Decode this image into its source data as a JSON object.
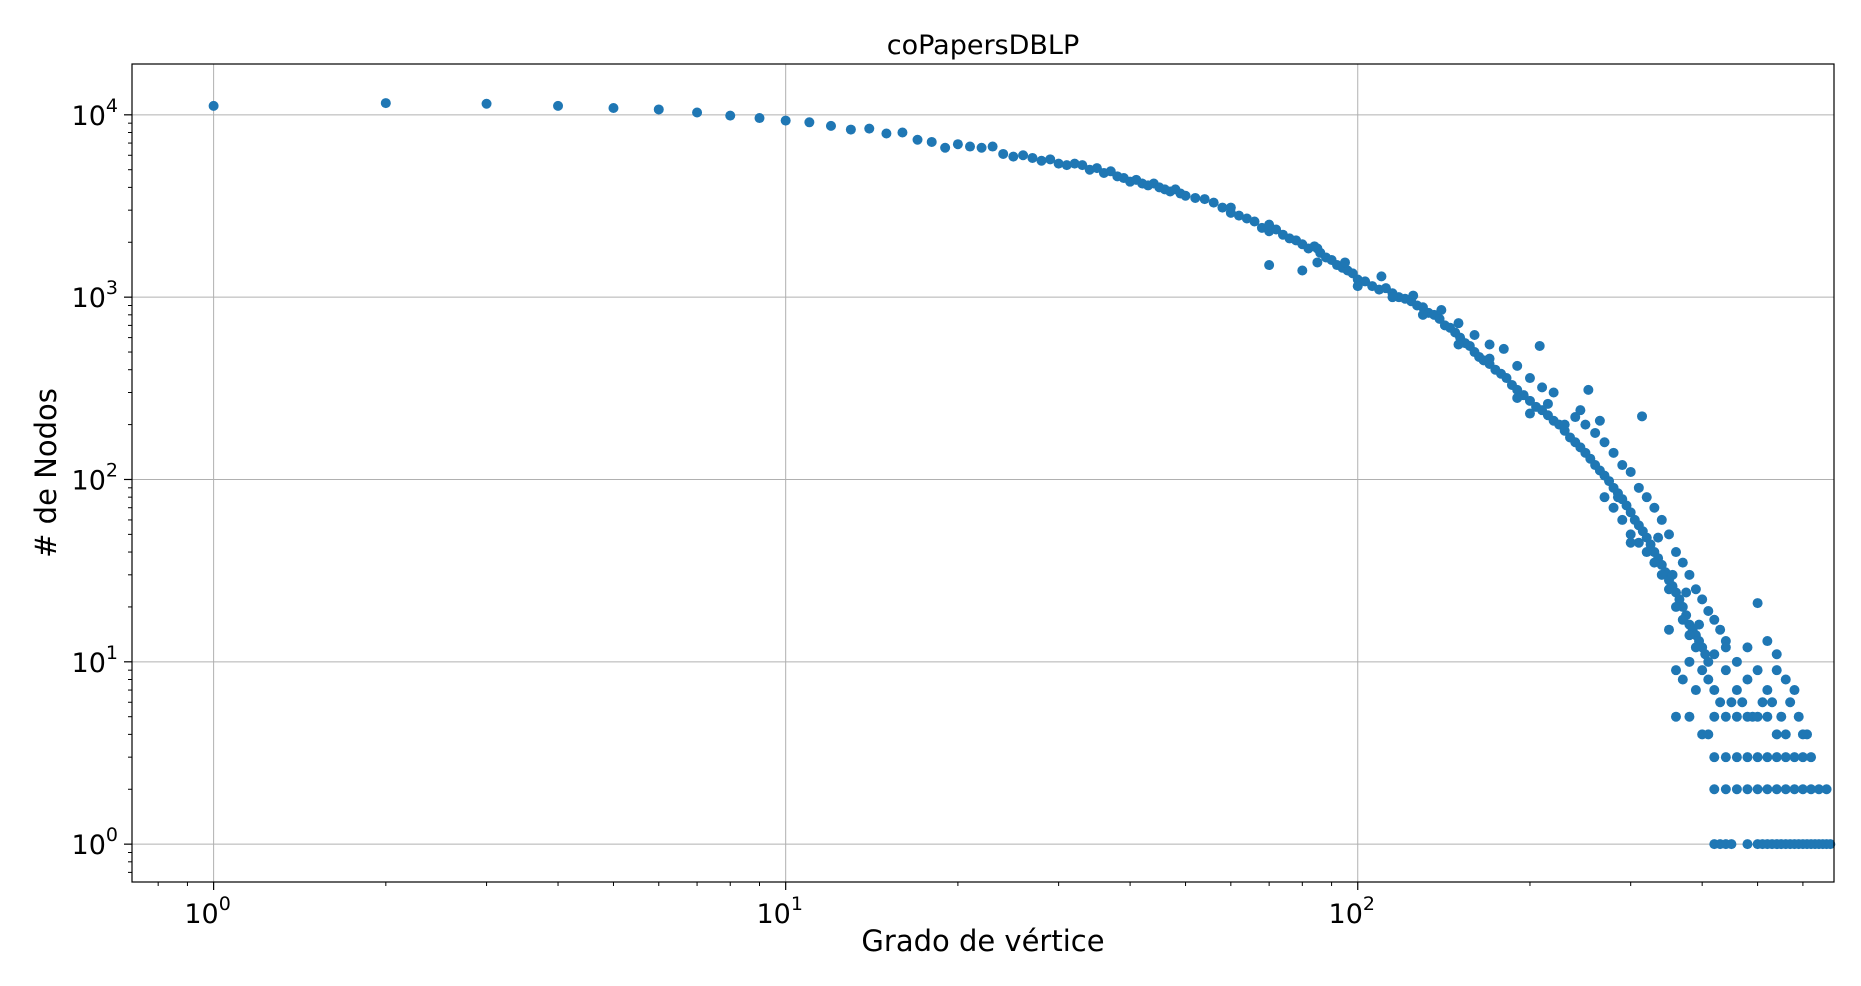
{
  "chart_data": {
    "type": "scatter",
    "title": "coPapersDBLP",
    "xlabel": "Grado de vértice",
    "ylabel": "# de Nodos",
    "xscale": "log",
    "yscale": "log",
    "xlim": [
      0.72,
      680
    ],
    "ylim": [
      0.62,
      19000
    ],
    "grid": true,
    "marker_color": "#1f77b4",
    "x_ticks": [
      {
        "base": "10",
        "exp": "0",
        "value": 1
      },
      {
        "base": "10",
        "exp": "1",
        "value": 10
      },
      {
        "base": "10",
        "exp": "2",
        "value": 100
      }
    ],
    "y_ticks": [
      {
        "base": "10",
        "exp": "0",
        "value": 1
      },
      {
        "base": "10",
        "exp": "1",
        "value": 10
      },
      {
        "base": "10",
        "exp": "2",
        "value": 100
      },
      {
        "base": "10",
        "exp": "3",
        "value": 1000
      },
      {
        "base": "10",
        "exp": "4",
        "value": 10000
      }
    ],
    "points": [
      [
        1,
        11200
      ],
      [
        2,
        11600
      ],
      [
        3,
        11500
      ],
      [
        4,
        11200
      ],
      [
        5,
        10900
      ],
      [
        6,
        10700
      ],
      [
        7,
        10300
      ],
      [
        8,
        9900
      ],
      [
        9,
        9600
      ],
      [
        10,
        9300
      ],
      [
        11,
        9100
      ],
      [
        12,
        8700
      ],
      [
        13,
        8300
      ],
      [
        14,
        8400
      ],
      [
        15,
        7900
      ],
      [
        16,
        8000
      ],
      [
        17,
        7300
      ],
      [
        18,
        7100
      ],
      [
        19,
        6600
      ],
      [
        20,
        6900
      ],
      [
        21,
        6700
      ],
      [
        22,
        6600
      ],
      [
        23,
        6700
      ],
      [
        24,
        6100
      ],
      [
        25,
        5900
      ],
      [
        26,
        6000
      ],
      [
        27,
        5800
      ],
      [
        28,
        5600
      ],
      [
        29,
        5700
      ],
      [
        30,
        5400
      ],
      [
        31,
        5300
      ],
      [
        32,
        5400
      ],
      [
        33,
        5300
      ],
      [
        34,
        5000
      ],
      [
        35,
        5100
      ],
      [
        36,
        4800
      ],
      [
        37,
        4900
      ],
      [
        38,
        4600
      ],
      [
        39,
        4500
      ],
      [
        40,
        4300
      ],
      [
        41,
        4400
      ],
      [
        42,
        4200
      ],
      [
        43,
        4100
      ],
      [
        44,
        4200
      ],
      [
        45,
        4000
      ],
      [
        46,
        3900
      ],
      [
        47,
        3800
      ],
      [
        48,
        3900
      ],
      [
        49,
        3700
      ],
      [
        50,
        3600
      ],
      [
        52,
        3500
      ],
      [
        54,
        3450
      ],
      [
        56,
        3300
      ],
      [
        58,
        3100
      ],
      [
        60,
        2900
      ],
      [
        62,
        2800
      ],
      [
        64,
        2700
      ],
      [
        66,
        2600
      ],
      [
        68,
        2400
      ],
      [
        70,
        2300
      ],
      [
        72,
        2350
      ],
      [
        74,
        2200
      ],
      [
        76,
        2100
      ],
      [
        78,
        2050
      ],
      [
        80,
        1950
      ],
      [
        82,
        1850
      ],
      [
        84,
        1900
      ],
      [
        86,
        1750
      ],
      [
        88,
        1650
      ],
      [
        90,
        1600
      ],
      [
        92,
        1500
      ],
      [
        94,
        1450
      ],
      [
        96,
        1400
      ],
      [
        98,
        1350
      ],
      [
        100,
        1250
      ],
      [
        103,
        1220
      ],
      [
        106,
        1150
      ],
      [
        109,
        1100
      ],
      [
        112,
        1120
      ],
      [
        115,
        1050
      ],
      [
        118,
        1000
      ],
      [
        121,
        980
      ],
      [
        124,
        950
      ],
      [
        127,
        900
      ],
      [
        130,
        880
      ],
      [
        133,
        820
      ],
      [
        136,
        800
      ],
      [
        139,
        760
      ],
      [
        142,
        700
      ],
      [
        145,
        680
      ],
      [
        148,
        640
      ],
      [
        151,
        600
      ],
      [
        154,
        560
      ],
      [
        157,
        540
      ],
      [
        160,
        500
      ],
      [
        163,
        470
      ],
      [
        166,
        450
      ],
      [
        170,
        430
      ],
      [
        174,
        400
      ],
      [
        178,
        380
      ],
      [
        182,
        360
      ],
      [
        186,
        330
      ],
      [
        190,
        310
      ],
      [
        195,
        290
      ],
      [
        200,
        270
      ],
      [
        205,
        250
      ],
      [
        210,
        240
      ],
      [
        215,
        225
      ],
      [
        220,
        210
      ],
      [
        225,
        200
      ],
      [
        230,
        185
      ],
      [
        235,
        170
      ],
      [
        240,
        160
      ],
      [
        245,
        150
      ],
      [
        250,
        140
      ],
      [
        255,
        130
      ],
      [
        260,
        120
      ],
      [
        265,
        112
      ],
      [
        270,
        105
      ],
      [
        275,
        98
      ],
      [
        280,
        90
      ],
      [
        285,
        84
      ],
      [
        290,
        78
      ],
      [
        295,
        72
      ],
      [
        300,
        66
      ],
      [
        305,
        60
      ],
      [
        310,
        56
      ],
      [
        315,
        52
      ],
      [
        320,
        48
      ],
      [
        325,
        44
      ],
      [
        330,
        40
      ],
      [
        335,
        37
      ],
      [
        340,
        34
      ],
      [
        345,
        31
      ],
      [
        350,
        28
      ],
      [
        355,
        26
      ],
      [
        360,
        24
      ],
      [
        365,
        22
      ],
      [
        370,
        20
      ],
      [
        375,
        18
      ],
      [
        380,
        16
      ],
      [
        385,
        15
      ],
      [
        390,
        14
      ],
      [
        395,
        13
      ],
      [
        400,
        12
      ],
      [
        405,
        11
      ],
      [
        410,
        10
      ],
      [
        60,
        3100
      ],
      [
        70,
        2500
      ],
      [
        85,
        1850
      ],
      [
        95,
        1550
      ],
      [
        110,
        1300
      ],
      [
        125,
        1020
      ],
      [
        140,
        850
      ],
      [
        150,
        720
      ],
      [
        160,
        620
      ],
      [
        170,
        550
      ],
      [
        180,
        520
      ],
      [
        190,
        420
      ],
      [
        200,
        360
      ],
      [
        210,
        320
      ],
      [
        220,
        300
      ],
      [
        240,
        220
      ],
      [
        250,
        200
      ],
      [
        260,
        180
      ],
      [
        270,
        160
      ],
      [
        280,
        140
      ],
      [
        290,
        120
      ],
      [
        300,
        110
      ],
      [
        310,
        90
      ],
      [
        320,
        80
      ],
      [
        330,
        70
      ],
      [
        340,
        60
      ],
      [
        350,
        50
      ],
      [
        360,
        40
      ],
      [
        370,
        35
      ],
      [
        380,
        30
      ],
      [
        390,
        25
      ],
      [
        400,
        22
      ],
      [
        410,
        19
      ],
      [
        420,
        17
      ],
      [
        430,
        15
      ],
      [
        440,
        13
      ],
      [
        280,
        70
      ],
      [
        290,
        60
      ],
      [
        300,
        50
      ],
      [
        310,
        45
      ],
      [
        320,
        40
      ],
      [
        330,
        35
      ],
      [
        340,
        30
      ],
      [
        350,
        25
      ],
      [
        360,
        20
      ],
      [
        370,
        17
      ],
      [
        380,
        14
      ],
      [
        390,
        12
      ],
      [
        208,
        540
      ],
      [
        253,
        310
      ],
      [
        314,
        222
      ],
      [
        245,
        240
      ],
      [
        265,
        210
      ],
      [
        70,
        1500
      ],
      [
        80,
        1400
      ],
      [
        85,
        1550
      ],
      [
        100,
        1150
      ],
      [
        115,
        1000
      ],
      [
        130,
        800
      ],
      [
        150,
        550
      ],
      [
        170,
        460
      ],
      [
        190,
        280
      ],
      [
        200,
        230
      ],
      [
        215,
        260
      ],
      [
        230,
        200
      ],
      [
        270,
        80
      ],
      [
        285,
        80
      ],
      [
        300,
        45
      ],
      [
        335,
        48
      ],
      [
        355,
        30
      ],
      [
        375,
        24
      ],
      [
        395,
        16
      ],
      [
        420,
        11
      ],
      [
        440,
        12
      ],
      [
        460,
        10
      ],
      [
        480,
        12
      ],
      [
        500,
        21
      ],
      [
        520,
        13
      ],
      [
        540,
        11
      ],
      [
        400,
        9
      ],
      [
        420,
        7
      ],
      [
        440,
        9
      ],
      [
        460,
        7
      ],
      [
        480,
        8
      ],
      [
        500,
        9
      ],
      [
        520,
        7
      ],
      [
        540,
        9
      ],
      [
        560,
        8
      ],
      [
        580,
        7
      ],
      [
        350,
        15
      ],
      [
        360,
        9
      ],
      [
        370,
        8
      ],
      [
        380,
        10
      ],
      [
        390,
        7
      ],
      [
        410,
        8
      ],
      [
        430,
        6
      ],
      [
        450,
        6
      ],
      [
        470,
        6
      ],
      [
        490,
        5
      ],
      [
        510,
        6
      ],
      [
        530,
        6
      ],
      [
        550,
        5
      ],
      [
        570,
        6
      ],
      [
        590,
        5
      ],
      [
        610,
        4
      ],
      [
        360,
        5
      ],
      [
        380,
        5
      ],
      [
        400,
        4
      ],
      [
        420,
        5
      ],
      [
        440,
        5
      ],
      [
        460,
        5
      ],
      [
        480,
        5
      ],
      [
        500,
        5
      ],
      [
        520,
        5
      ],
      [
        540,
        4
      ],
      [
        560,
        4
      ],
      [
        600,
        4
      ],
      [
        420,
        3
      ],
      [
        440,
        3
      ],
      [
        460,
        3
      ],
      [
        480,
        3
      ],
      [
        500,
        3
      ],
      [
        520,
        3
      ],
      [
        540,
        3
      ],
      [
        560,
        3
      ],
      [
        580,
        3
      ],
      [
        600,
        3
      ],
      [
        620,
        3
      ],
      [
        410,
        4
      ],
      [
        420,
        2
      ],
      [
        440,
        2
      ],
      [
        460,
        2
      ],
      [
        480,
        2
      ],
      [
        500,
        2
      ],
      [
        520,
        2
      ],
      [
        540,
        2
      ],
      [
        560,
        2
      ],
      [
        580,
        2
      ],
      [
        600,
        2
      ],
      [
        620,
        2
      ],
      [
        640,
        2
      ],
      [
        660,
        2
      ],
      [
        420,
        1
      ],
      [
        430,
        1
      ],
      [
        440,
        1
      ],
      [
        450,
        1
      ],
      [
        480,
        1
      ],
      [
        500,
        1
      ],
      [
        510,
        1
      ],
      [
        520,
        1
      ],
      [
        530,
        1
      ],
      [
        540,
        1
      ],
      [
        550,
        1
      ],
      [
        560,
        1
      ],
      [
        570,
        1
      ],
      [
        580,
        1
      ],
      [
        590,
        1
      ],
      [
        600,
        1
      ],
      [
        610,
        1
      ],
      [
        620,
        1
      ],
      [
        630,
        1
      ],
      [
        640,
        1
      ],
      [
        650,
        1
      ],
      [
        660,
        1
      ],
      [
        670,
        1
      ]
    ]
  }
}
